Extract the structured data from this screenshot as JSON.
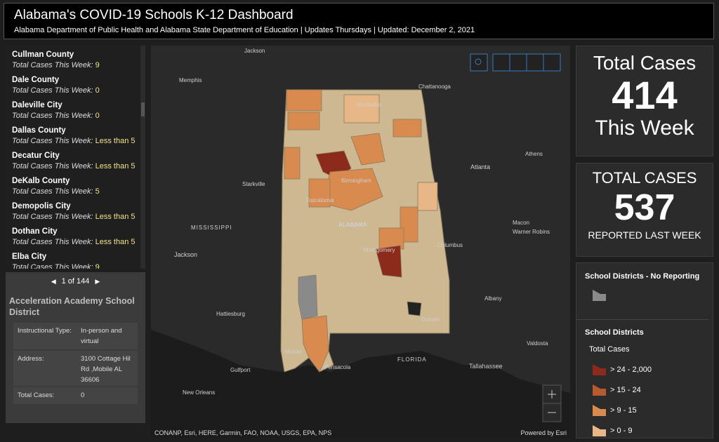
{
  "header": {
    "title": "Alabama's COVID-19 Schools K-12 Dashboard",
    "subtitle": "Alabama Department of Public Health and Alabama State Department of Education | Updates Thursdays | Updated: December 2, 2021"
  },
  "list": {
    "label": "Total Cases This Week:",
    "items": [
      {
        "name": "Cullman County",
        "value": "9"
      },
      {
        "name": "Dale County",
        "value": "0"
      },
      {
        "name": "Daleville City",
        "value": "0"
      },
      {
        "name": "Dallas County",
        "value": "Less than 5"
      },
      {
        "name": "Decatur City",
        "value": "Less than 5"
      },
      {
        "name": "DeKalb County",
        "value": "5"
      },
      {
        "name": "Demopolis City",
        "value": "Less than 5"
      },
      {
        "name": "Dothan City",
        "value": "Less than 5"
      },
      {
        "name": "Elba City",
        "value": "9"
      }
    ]
  },
  "popup": {
    "pager": "1 of 144",
    "title": "Acceleration Academy School District",
    "fields": [
      {
        "key": "Instructional Type:",
        "value": "In-person and virtual"
      },
      {
        "key": "Address:",
        "value": "3100 Cottage Hil Rd ,Mobile AL 36606"
      },
      {
        "key": "Total Cases:",
        "value": "0"
      }
    ]
  },
  "map": {
    "labels": [
      "Jackson",
      "Memphis",
      "Chattanooga",
      "Huntsville",
      "Athens",
      "Atlanta",
      "Starkville",
      "Birmingham",
      "Tuscaloosa",
      "MISSISSIPPI",
      "ALABAMA",
      "Macon",
      "Warner Robins",
      "Jackson",
      "Montgomery",
      "Columbus",
      "Hattiesburg",
      "Albany",
      "Dothan",
      "Valdosta",
      "Mobile",
      "Gulfport",
      "FLORIDA",
      "Tallahassee",
      "Pensacola",
      "New Orleans"
    ],
    "attribution": "CONANP, Esri, HERE, Garmin, FAO, NOAA, USGS, EPA, NPS",
    "powered": "Powered by Esri"
  },
  "this_week": {
    "top": "Total Cases",
    "value": 414,
    "bottom": "This Week"
  },
  "last_week": {
    "top": "TOTAL CASES",
    "value": 537,
    "bottom": "REPORTED LAST WEEK"
  },
  "legend": {
    "no_reporting": "School Districts - No Reporting",
    "layer": "School Districts",
    "field": "Total Cases",
    "classes": [
      {
        "label": "> 24 - 2,000",
        "color": "#8c2a1c"
      },
      {
        "label": "> 15 - 24",
        "color": "#b85a30"
      },
      {
        "label": "> 9 - 15",
        "color": "#d98a4e"
      },
      {
        "label": "> 0 - 9",
        "color": "#e8b788"
      }
    ]
  }
}
